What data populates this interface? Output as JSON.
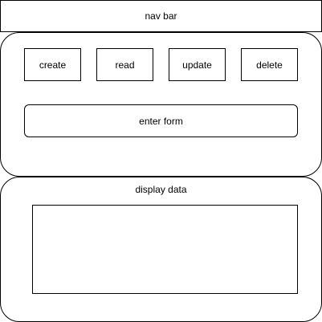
{
  "navbar": {
    "label": "nav bar"
  },
  "actions": {
    "create": "create",
    "read": "read",
    "update": "update",
    "delete": "delete"
  },
  "form": {
    "label": "enter form"
  },
  "display": {
    "title": "display data"
  }
}
